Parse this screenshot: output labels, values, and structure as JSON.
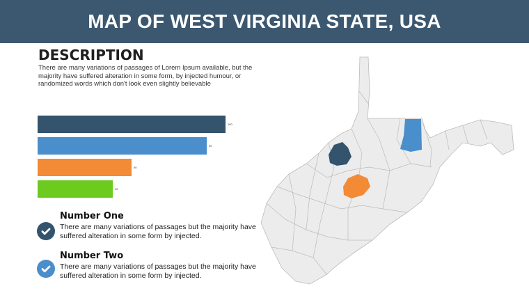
{
  "header": {
    "title": "MAP OF WEST VIRGINIA STATE, USA"
  },
  "description": {
    "title": "DESCRIPTION",
    "text": "There are many variations of passages of Lorem Ipsum available, but the majority have suffered alteration in some form, by injected humour, or randomized words which don't look even slightly believable"
  },
  "chart_data": {
    "type": "bar",
    "orientation": "horizontal",
    "values": [
      100,
      90,
      50,
      40
    ],
    "labels": [
      "100",
      "90",
      "50",
      "40"
    ],
    "colors": [
      "#34536d",
      "#4a8ecb",
      "#f38a35",
      "#6ccb1e"
    ]
  },
  "items": [
    {
      "title": "Number One",
      "text": "There are many variations of passages but the majority have  suffered alteration in some form by injected.",
      "icon": "check-circle-icon",
      "color": "#34536d"
    },
    {
      "title": "Number Two",
      "text": "There are many variations of passages but the majority have  suffered alteration in some form by injected.",
      "icon": "check-circle-icon",
      "color": "#4a8ecb"
    }
  ],
  "map": {
    "base_color": "#ececec",
    "highlights": [
      "#34536d",
      "#4a8ecb",
      "#f38a35"
    ]
  }
}
